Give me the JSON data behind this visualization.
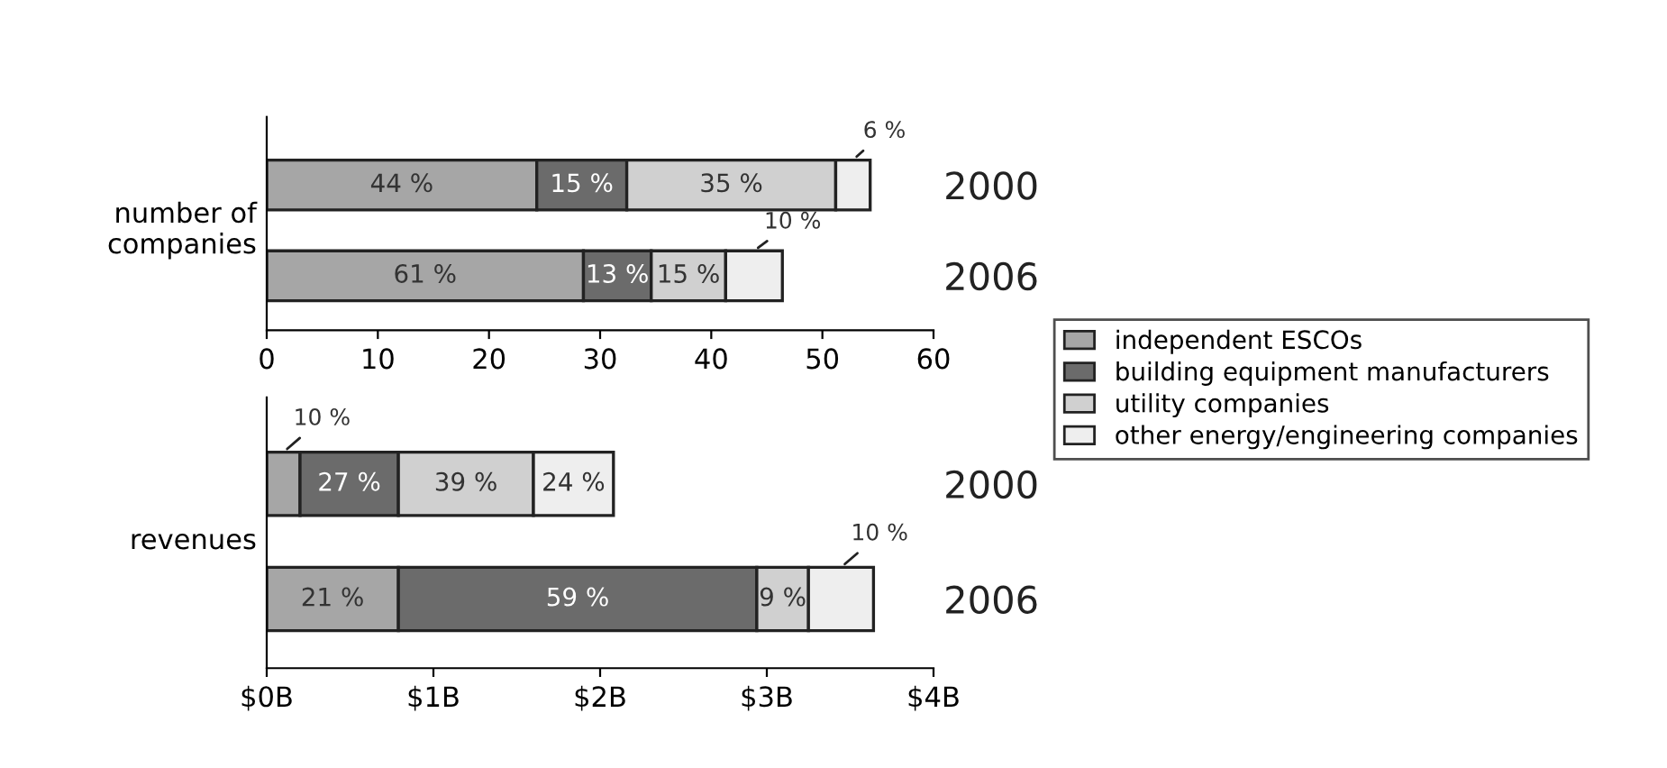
{
  "chart_data": [
    {
      "type": "bar",
      "orientation": "horizontal",
      "stacked": true,
      "ylabel": "number of companies",
      "categories": [
        "2000",
        "2006"
      ],
      "xlim": [
        0,
        60
      ],
      "xticks": [
        0,
        10,
        20,
        30,
        40,
        50,
        60
      ],
      "grid": false,
      "legend": "right",
      "series": [
        {
          "name": "independent ESCOs",
          "color": "#a6a6a6",
          "values": [
            24.3,
            28.5
          ]
        },
        {
          "name": "building equipment manufacturers",
          "color": "#6b6b6b",
          "values": [
            8.1,
            6.1
          ]
        },
        {
          "name": "utility companies",
          "color": "#d0d0d0",
          "values": [
            18.8,
            6.7
          ]
        },
        {
          "name": "other energy/engineering companies",
          "color": "#eeeeee",
          "values": [
            3.1,
            5.1
          ]
        }
      ],
      "annotations": [
        "44 %",
        "15 %",
        "35 %",
        "6 %",
        "61 %",
        "13 %",
        "15 %",
        "10 %"
      ]
    },
    {
      "type": "bar",
      "orientation": "horizontal",
      "stacked": true,
      "ylabel": "revenues",
      "categories": [
        "2000",
        "2006"
      ],
      "xlim": [
        0,
        4
      ],
      "xticks": [
        {
          "value": 0,
          "label": "$0B"
        },
        {
          "value": 1,
          "label": "$1B"
        },
        {
          "value": 2,
          "label": "$2B"
        },
        {
          "value": 3,
          "label": "$3B"
        },
        {
          "value": 4,
          "label": "$4B"
        }
      ],
      "grid": false,
      "series": [
        {
          "color": "#a6a6a6",
          "values": [
            0.2,
            0.79
          ]
        },
        {
          "color": "#6b6b6b",
          "values": [
            0.59,
            2.15
          ]
        },
        {
          "color": "#d0d0d0",
          "values": [
            0.81,
            0.31
          ]
        },
        {
          "color": "#eeeeee",
          "values": [
            0.48,
            0.39
          ]
        }
      ],
      "annotations": [
        "10 %",
        "27 %",
        "39 %",
        "24 %",
        "21 %",
        "59 %",
        "9 %",
        "10 %"
      ]
    }
  ]
}
